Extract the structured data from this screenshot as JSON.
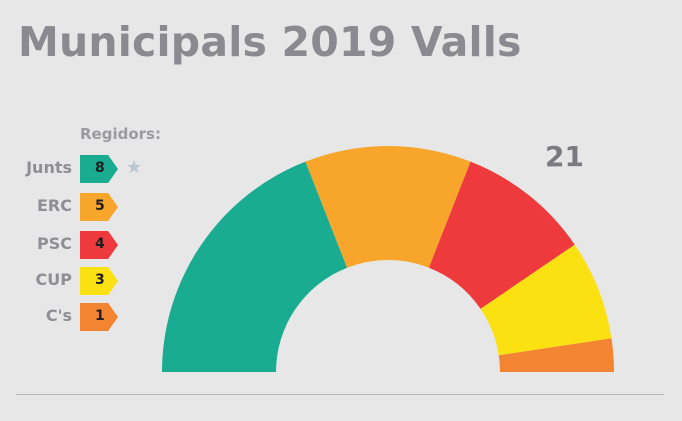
{
  "chart_data": {
    "type": "pie",
    "title": "Municipals 2019 Valls",
    "legend_title": "Regidors:",
    "total_label": "21",
    "total": 21,
    "legend_position": "left",
    "categories": [
      "Junts",
      "ERC",
      "PSC",
      "CUP",
      "C's"
    ],
    "values": [
      8,
      5,
      4,
      3,
      1
    ],
    "value_labels": [
      "8",
      "5",
      "4",
      "3",
      "1"
    ],
    "colors": [
      "#19ac91",
      "#f7a52b",
      "#ee3a3d",
      "#fbe012",
      "#f38432"
    ],
    "highlight_party": "Junts",
    "highlight_icon": "star-icon"
  }
}
